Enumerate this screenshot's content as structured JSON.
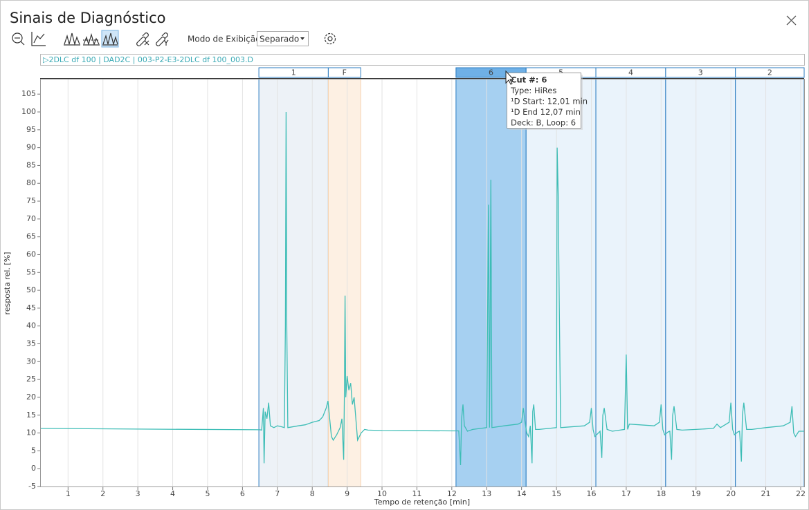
{
  "window": {
    "title": "Sinais de Diagnóstico",
    "mode_label": "Modo de Exibição",
    "mode_value": "Separado"
  },
  "chart_data": {
    "type": "line",
    "header": "▷2DLC df 100 | DAD2C | 003-P2-E3-2DLC df 100_003.D",
    "x_label": "Tempo de retenção [min]",
    "y_label": "resposta rel. [%]",
    "xlim": [
      0.2,
      22.1
    ],
    "ylim": [
      -5,
      109.3
    ],
    "xticks": [
      1,
      2,
      3,
      4,
      5,
      6,
      7,
      8,
      9,
      10,
      11,
      12,
      13,
      14,
      15,
      16,
      17,
      18,
      19,
      20,
      21,
      22
    ],
    "yticks": [
      -5,
      0,
      5,
      10,
      15,
      20,
      25,
      30,
      35,
      40,
      45,
      50,
      55,
      60,
      65,
      70,
      75,
      80,
      85,
      90,
      95,
      100,
      105
    ],
    "grid": true,
    "cuts": [
      {
        "label": "1",
        "start": 6.47,
        "end": 8.46,
        "color": "#edf2f7"
      },
      {
        "label": "F",
        "start": 8.46,
        "end": 9.39,
        "color": "#fdf0e3"
      },
      {
        "label": "6",
        "start": 12.12,
        "end": 14.13,
        "color": "#a6d0f1",
        "selected": true
      },
      {
        "label": "5",
        "start": 14.13,
        "end": 16.13,
        "color": "#eaf3fb"
      },
      {
        "label": "4",
        "start": 16.13,
        "end": 18.13,
        "color": "#eaf3fb"
      },
      {
        "label": "3",
        "start": 18.13,
        "end": 20.13,
        "color": "#eaf3fb"
      },
      {
        "label": "2",
        "start": 20.13,
        "end": 22.1,
        "color": "#eaf3fb"
      }
    ],
    "tooltip": {
      "lines": [
        "Cut #: 6",
        "Type: HiRes",
        "¹D Start: 12,01 min",
        "¹D End 12,07 min",
        "Deck: B, Loop: 6"
      ]
    },
    "x": [
      0.2,
      3,
      6.5,
      6.55,
      6.6,
      6.62,
      6.65,
      6.7,
      6.75,
      6.8,
      6.9,
      7.0,
      7.1,
      7.2,
      7.23,
      7.25,
      7.27,
      7.3,
      7.6,
      7.8,
      8.0,
      8.2,
      8.3,
      8.4,
      8.45,
      8.5,
      8.55,
      8.6,
      8.7,
      8.75,
      8.8,
      8.85,
      8.9,
      8.92,
      8.94,
      8.96,
      9.0,
      9.05,
      9.1,
      9.15,
      9.2,
      9.25,
      9.3,
      9.35,
      9.4,
      9.5,
      9.6,
      10,
      12,
      12.2,
      12.25,
      12.28,
      12.32,
      12.36,
      12.45,
      12.6,
      13.0,
      13.05,
      13.08,
      13.12,
      13.15,
      13.5,
      13.9,
      14.0,
      14.05,
      14.1,
      14.15,
      14.2,
      14.25,
      14.3,
      14.32,
      14.35,
      14.4,
      14.5,
      15.0,
      15.02,
      15.05,
      15.08,
      15.12,
      15.8,
      15.95,
      16.0,
      16.05,
      16.1,
      16.2,
      16.25,
      16.3,
      16.33,
      16.37,
      16.45,
      16.6,
      16.95,
      17.0,
      17.04,
      17.09,
      17.8,
      17.95,
      18.0,
      18.05,
      18.1,
      18.2,
      18.25,
      18.3,
      18.33,
      18.37,
      18.45,
      18.6,
      19.0,
      19.5,
      19.6,
      19.7,
      19.95,
      20.0,
      20.05,
      20.1,
      20.2,
      20.25,
      20.3,
      20.33,
      20.37,
      20.45,
      20.6,
      21.0,
      21.5,
      21.7,
      21.75,
      21.8,
      21.85,
      21.95,
      22.1
    ],
    "series": [
      {
        "name": "2DLC df 100",
        "color": "#3dbdb6",
        "values": [
          11.3,
          11.1,
          10.9,
          10.8,
          17,
          1.5,
          16,
          14,
          18.5,
          12,
          11.5,
          12,
          11.8,
          11.5,
          40,
          100,
          40,
          11.5,
          12,
          12.3,
          13,
          13.5,
          14.5,
          17,
          19,
          14,
          9,
          8,
          9.5,
          10.5,
          11.5,
          14,
          2.5,
          20,
          48.5,
          20,
          26,
          22,
          24,
          18,
          20,
          14,
          8,
          9,
          10,
          11,
          10.8,
          10.7,
          10.6,
          10.6,
          1,
          14,
          18,
          12,
          10.5,
          11,
          11.5,
          74,
          11.5,
          81,
          11.5,
          12,
          12.5,
          13,
          17,
          13,
          10,
          9,
          12,
          1.5,
          16,
          18,
          11,
          11,
          11.5,
          90,
          77,
          47,
          11.5,
          12,
          13,
          17,
          11,
          9,
          10,
          10.5,
          3,
          15,
          17,
          11,
          10.5,
          11,
          32,
          11,
          12.5,
          12,
          13,
          18,
          11,
          9.5,
          10.3,
          10.5,
          2.5,
          15,
          17.5,
          11,
          10.8,
          11,
          11.3,
          12.5,
          11.5,
          13,
          18.5,
          11,
          9.5,
          10.3,
          10.5,
          2,
          15,
          18.5,
          11,
          11,
          11.5,
          12,
          13,
          17.5,
          10,
          9,
          10.5,
          10.5
        ]
      }
    ]
  }
}
